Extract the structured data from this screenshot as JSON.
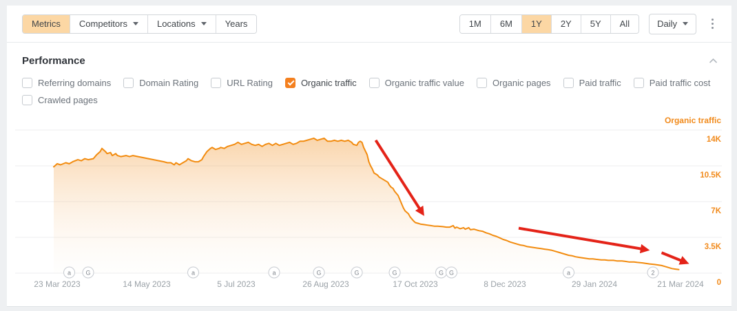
{
  "toolbar": {
    "left_tabs": [
      {
        "label": "Metrics",
        "selected": true,
        "has_caret": false
      },
      {
        "label": "Competitors",
        "selected": false,
        "has_caret": true
      },
      {
        "label": "Locations",
        "selected": false,
        "has_caret": true
      },
      {
        "label": "Years",
        "selected": false,
        "has_caret": false
      }
    ],
    "range_tabs": [
      {
        "label": "1M",
        "selected": false
      },
      {
        "label": "6M",
        "selected": false
      },
      {
        "label": "1Y",
        "selected": true
      },
      {
        "label": "2Y",
        "selected": false
      },
      {
        "label": "5Y",
        "selected": false
      },
      {
        "label": "All",
        "selected": false
      }
    ],
    "granularity": {
      "label": "Daily"
    },
    "kebab_icon": "vertical-three-dots"
  },
  "panel": {
    "title": "Performance",
    "collapse_icon": "chevron-up"
  },
  "metrics_checkboxes": [
    {
      "label": "Referring domains",
      "checked": false
    },
    {
      "label": "Domain Rating",
      "checked": false
    },
    {
      "label": "URL Rating",
      "checked": false
    },
    {
      "label": "Organic traffic",
      "checked": true
    },
    {
      "label": "Organic traffic value",
      "checked": false
    },
    {
      "label": "Organic pages",
      "checked": false
    },
    {
      "label": "Paid traffic",
      "checked": false
    },
    {
      "label": "Paid traffic cost",
      "checked": false
    },
    {
      "label": "Crawled pages",
      "checked": false
    }
  ],
  "colors": {
    "accent_orange": "#f28b0e",
    "selected_chip": "#fcd7a4",
    "checkbox_checked": "#f4801f",
    "axis_label_orange": "#f18a1b",
    "date_label_gray": "#9aa1a7",
    "gridline": "#ededef",
    "annotation_red": "#e42318"
  },
  "chart_data": {
    "type": "area",
    "title": "Organic traffic",
    "legend_position": "top-right",
    "grid": "horizontal",
    "ylabel_side": "right",
    "unit": "thousands of visits",
    "ylim": [
      0,
      14
    ],
    "yticks": [
      {
        "label": "14K",
        "value": 14
      },
      {
        "label": "10.5K",
        "value": 10.5
      },
      {
        "label": "7K",
        "value": 7
      },
      {
        "label": "3.5K",
        "value": 3.5
      },
      {
        "label": "0",
        "value": 0
      }
    ],
    "xticks": [
      {
        "label": "23 Mar 2023",
        "day": 2
      },
      {
        "label": "14 May 2023",
        "day": 54
      },
      {
        "label": "5 Jul 2023",
        "day": 106
      },
      {
        "label": "26 Aug 2023",
        "day": 158
      },
      {
        "label": "17 Oct 2023",
        "day": 210
      },
      {
        "label": "8 Dec 2023",
        "day": 262
      },
      {
        "label": "29 Jan 2024",
        "day": 314
      },
      {
        "label": "21 Mar 2024",
        "day": 364
      }
    ],
    "series": [
      {
        "name": "Organic traffic",
        "x_unit": "days since 23 Mar 2023",
        "y_unit": "K",
        "points": [
          [
            0,
            10.4
          ],
          [
            2,
            10.7
          ],
          [
            4,
            10.6
          ],
          [
            7,
            10.8
          ],
          [
            9,
            10.7
          ],
          [
            11,
            10.9
          ],
          [
            14,
            11.1
          ],
          [
            16,
            11.0
          ],
          [
            18,
            11.2
          ],
          [
            20,
            11.1
          ],
          [
            23,
            11.2
          ],
          [
            25,
            11.6
          ],
          [
            27,
            11.9
          ],
          [
            28,
            12.2
          ],
          [
            30,
            11.9
          ],
          [
            31,
            11.7
          ],
          [
            33,
            11.8
          ],
          [
            34,
            11.5
          ],
          [
            36,
            11.7
          ],
          [
            37,
            11.5
          ],
          [
            39,
            11.4
          ],
          [
            42,
            11.5
          ],
          [
            44,
            11.4
          ],
          [
            46,
            11.5
          ],
          [
            49,
            11.4
          ],
          [
            52,
            11.3
          ],
          [
            55,
            11.2
          ],
          [
            58,
            11.1
          ],
          [
            61,
            11.0
          ],
          [
            64,
            10.9
          ],
          [
            66,
            10.8
          ],
          [
            68,
            10.8
          ],
          [
            70,
            10.6
          ],
          [
            71,
            10.8
          ],
          [
            73,
            10.6
          ],
          [
            75,
            10.8
          ],
          [
            77,
            11.0
          ],
          [
            78,
            11.2
          ],
          [
            80,
            11.0
          ],
          [
            82,
            10.9
          ],
          [
            84,
            10.9
          ],
          [
            86,
            11.1
          ],
          [
            87,
            11.4
          ],
          [
            89,
            11.9
          ],
          [
            91,
            12.2
          ],
          [
            92,
            12.3
          ],
          [
            94,
            12.1
          ],
          [
            96,
            12.2
          ],
          [
            97,
            12.3
          ],
          [
            99,
            12.2
          ],
          [
            101,
            12.4
          ],
          [
            103,
            12.5
          ],
          [
            105,
            12.6
          ],
          [
            107,
            12.8
          ],
          [
            109,
            12.6
          ],
          [
            111,
            12.7
          ],
          [
            113,
            12.8
          ],
          [
            115,
            12.6
          ],
          [
            117,
            12.5
          ],
          [
            119,
            12.6
          ],
          [
            121,
            12.4
          ],
          [
            123,
            12.6
          ],
          [
            125,
            12.7
          ],
          [
            127,
            12.5
          ],
          [
            129,
            12.7
          ],
          [
            131,
            12.5
          ],
          [
            133,
            12.6
          ],
          [
            135,
            12.7
          ],
          [
            137,
            12.8
          ],
          [
            139,
            12.6
          ],
          [
            141,
            12.7
          ],
          [
            143,
            12.9
          ],
          [
            145,
            12.9
          ],
          [
            147,
            13.0
          ],
          [
            149,
            13.1
          ],
          [
            151,
            13.2
          ],
          [
            153,
            13.0
          ],
          [
            155,
            13.1
          ],
          [
            157,
            13.2
          ],
          [
            159,
            12.9
          ],
          [
            161,
            12.9
          ],
          [
            163,
            13.0
          ],
          [
            165,
            12.9
          ],
          [
            167,
            13.0
          ],
          [
            169,
            12.9
          ],
          [
            171,
            13.0
          ],
          [
            173,
            12.8
          ],
          [
            174,
            12.6
          ],
          [
            176,
            12.5
          ],
          [
            177,
            12.8
          ],
          [
            178,
            12.9
          ],
          [
            179,
            12.8
          ],
          [
            180,
            12.3
          ],
          [
            182,
            11.6
          ],
          [
            183,
            10.9
          ],
          [
            184,
            10.5
          ],
          [
            185,
            10.2
          ],
          [
            186,
            9.8
          ],
          [
            188,
            9.6
          ],
          [
            189,
            9.4
          ],
          [
            190,
            9.3
          ],
          [
            191,
            9.2
          ],
          [
            192,
            9.1
          ],
          [
            194,
            8.9
          ],
          [
            195,
            8.6
          ],
          [
            196,
            8.4
          ],
          [
            197,
            8.3
          ],
          [
            198,
            8.0
          ],
          [
            200,
            7.6
          ],
          [
            201,
            7.2
          ],
          [
            202,
            6.8
          ],
          [
            203,
            6.4
          ],
          [
            204,
            6.1
          ],
          [
            206,
            5.8
          ],
          [
            207,
            5.5
          ],
          [
            208,
            5.3
          ],
          [
            209,
            5.1
          ],
          [
            210,
            4.95
          ],
          [
            212,
            4.85
          ],
          [
            213,
            4.8
          ],
          [
            215,
            4.75
          ],
          [
            217,
            4.7
          ],
          [
            219,
            4.65
          ],
          [
            221,
            4.6
          ],
          [
            223,
            4.6
          ],
          [
            226,
            4.55
          ],
          [
            228,
            4.5
          ],
          [
            230,
            4.5
          ],
          [
            232,
            4.65
          ],
          [
            233,
            4.4
          ],
          [
            234,
            4.5
          ],
          [
            236,
            4.35
          ],
          [
            238,
            4.45
          ],
          [
            239,
            4.3
          ],
          [
            241,
            4.45
          ],
          [
            242,
            4.25
          ],
          [
            244,
            4.3
          ],
          [
            246,
            4.2
          ],
          [
            247,
            4.15
          ],
          [
            249,
            4.1
          ],
          [
            251,
            3.95
          ],
          [
            253,
            3.85
          ],
          [
            255,
            3.7
          ],
          [
            257,
            3.6
          ],
          [
            259,
            3.45
          ],
          [
            261,
            3.3
          ],
          [
            263,
            3.2
          ],
          [
            265,
            3.05
          ],
          [
            267,
            2.95
          ],
          [
            269,
            2.85
          ],
          [
            271,
            2.75
          ],
          [
            273,
            2.7
          ],
          [
            275,
            2.6
          ],
          [
            277,
            2.55
          ],
          [
            279,
            2.5
          ],
          [
            281,
            2.45
          ],
          [
            283,
            2.4
          ],
          [
            285,
            2.35
          ],
          [
            287,
            2.3
          ],
          [
            289,
            2.25
          ],
          [
            291,
            2.15
          ],
          [
            293,
            2.05
          ],
          [
            295,
            1.95
          ],
          [
            297,
            1.85
          ],
          [
            299,
            1.75
          ],
          [
            301,
            1.7
          ],
          [
            303,
            1.6
          ],
          [
            305,
            1.55
          ],
          [
            307,
            1.5
          ],
          [
            309,
            1.45
          ],
          [
            311,
            1.4
          ],
          [
            313,
            1.4
          ],
          [
            315,
            1.35
          ],
          [
            318,
            1.3
          ],
          [
            320,
            1.3
          ],
          [
            322,
            1.25
          ],
          [
            325,
            1.25
          ],
          [
            327,
            1.2
          ],
          [
            330,
            1.2
          ],
          [
            332,
            1.15
          ],
          [
            334,
            1.1
          ],
          [
            337,
            1.1
          ],
          [
            339,
            1.05
          ],
          [
            342,
            1.0
          ],
          [
            344,
            0.95
          ],
          [
            346,
            0.9
          ],
          [
            349,
            0.85
          ],
          [
            351,
            0.8
          ],
          [
            353,
            0.75
          ],
          [
            355,
            0.65
          ],
          [
            357,
            0.55
          ],
          [
            359,
            0.45
          ],
          [
            361,
            0.4
          ],
          [
            363,
            0.35
          ]
        ]
      }
    ],
    "event_markers": [
      {
        "day": 9,
        "glyph": "a"
      },
      {
        "day": 20,
        "glyph": "G"
      },
      {
        "day": 81,
        "glyph": "a"
      },
      {
        "day": 128,
        "glyph": "a"
      },
      {
        "day": 154,
        "glyph": "G"
      },
      {
        "day": 176,
        "glyph": "G"
      },
      {
        "day": 198,
        "glyph": "G"
      },
      {
        "day": 225,
        "glyph": "G"
      },
      {
        "day": 231,
        "glyph": "G"
      },
      {
        "day": 299,
        "glyph": "a"
      },
      {
        "day": 348,
        "glyph": "2"
      }
    ],
    "annotations": [
      {
        "type": "arrow",
        "from": [
          187,
          13.0
        ],
        "to": [
          214,
          5.9
        ]
      },
      {
        "type": "arrow",
        "from": [
          270,
          4.4
        ],
        "to": [
          344,
          2.3
        ]
      },
      {
        "type": "arrow",
        "from": [
          353,
          2.0
        ],
        "to": [
          367,
          1.05
        ]
      }
    ]
  }
}
